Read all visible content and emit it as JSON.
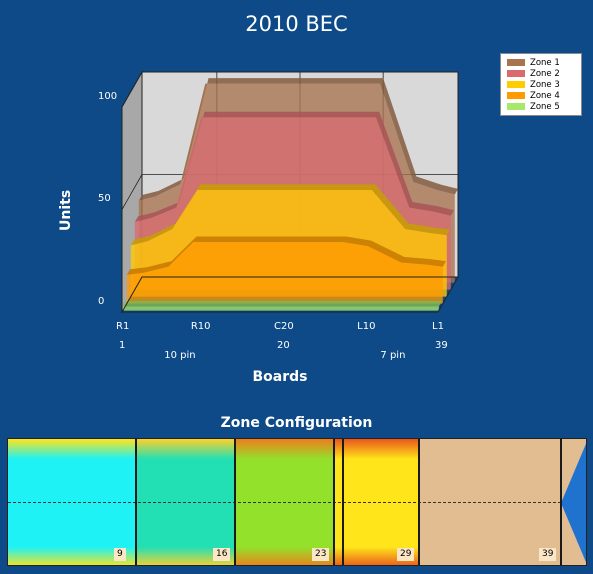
{
  "title": "2010 BEC",
  "chart_data": {
    "type": "area",
    "xlabel": "Boards",
    "ylabel": "Units",
    "ylim": [
      0,
      100
    ],
    "yticks": [
      0,
      50,
      100
    ],
    "x_tick_labels": [
      "R1",
      "R10",
      "C20",
      "L10",
      "L1"
    ],
    "x_tick_numbers": [
      "1",
      "20",
      "39"
    ],
    "pin_labels": [
      "10 pin",
      "7 pin"
    ],
    "x": [
      1,
      3,
      6,
      9,
      13,
      16,
      20,
      24,
      27,
      30,
      34,
      37,
      39
    ],
    "series": [
      {
        "name": "Zone 1",
        "color": "#a8734f",
        "values": [
          40,
          42,
          48,
          97,
          97,
          97,
          97,
          97,
          97,
          97,
          49,
          45,
          43
        ]
      },
      {
        "name": "Zone 2",
        "color": "#d96b6f",
        "values": [
          33,
          35,
          40,
          84,
          84,
          84,
          84,
          84,
          84,
          84,
          40,
          38,
          36
        ]
      },
      {
        "name": "Zone 3",
        "color": "#ffcc00",
        "values": [
          25,
          27,
          33,
          52,
          52,
          52,
          52,
          52,
          52,
          52,
          33,
          31,
          30
        ]
      },
      {
        "name": "Zone 4",
        "color": "#ff9a00",
        "values": [
          14,
          15,
          18,
          30,
          30,
          30,
          30,
          30,
          30,
          28,
          20,
          19,
          18
        ]
      },
      {
        "name": "Zone 5",
        "color": "#a6e86a",
        "values": [
          2,
          2,
          2,
          2,
          2,
          2,
          2,
          2,
          2,
          2,
          2,
          2,
          2
        ]
      }
    ],
    "legend_position": "top-right",
    "grid": true
  },
  "zone_config": {
    "title": "Zone Configuration",
    "zones": [
      {
        "end_board": 9,
        "label": "9",
        "color": "#1ef2f5",
        "cap": "#ffe51a"
      },
      {
        "end_board": 16,
        "label": "16",
        "color": "#22e0b4",
        "cap": "#ffd12a"
      },
      {
        "end_board": 23,
        "label": "23",
        "color": "#93e12a",
        "cap": "#f07c1c"
      },
      {
        "end_board": 29,
        "label": "29",
        "color": "#ffe51a",
        "cap": "#e9561c"
      },
      {
        "end_board": 39,
        "label": "39",
        "color": "#e3bd92",
        "cap": "#e3bd92"
      }
    ]
  }
}
